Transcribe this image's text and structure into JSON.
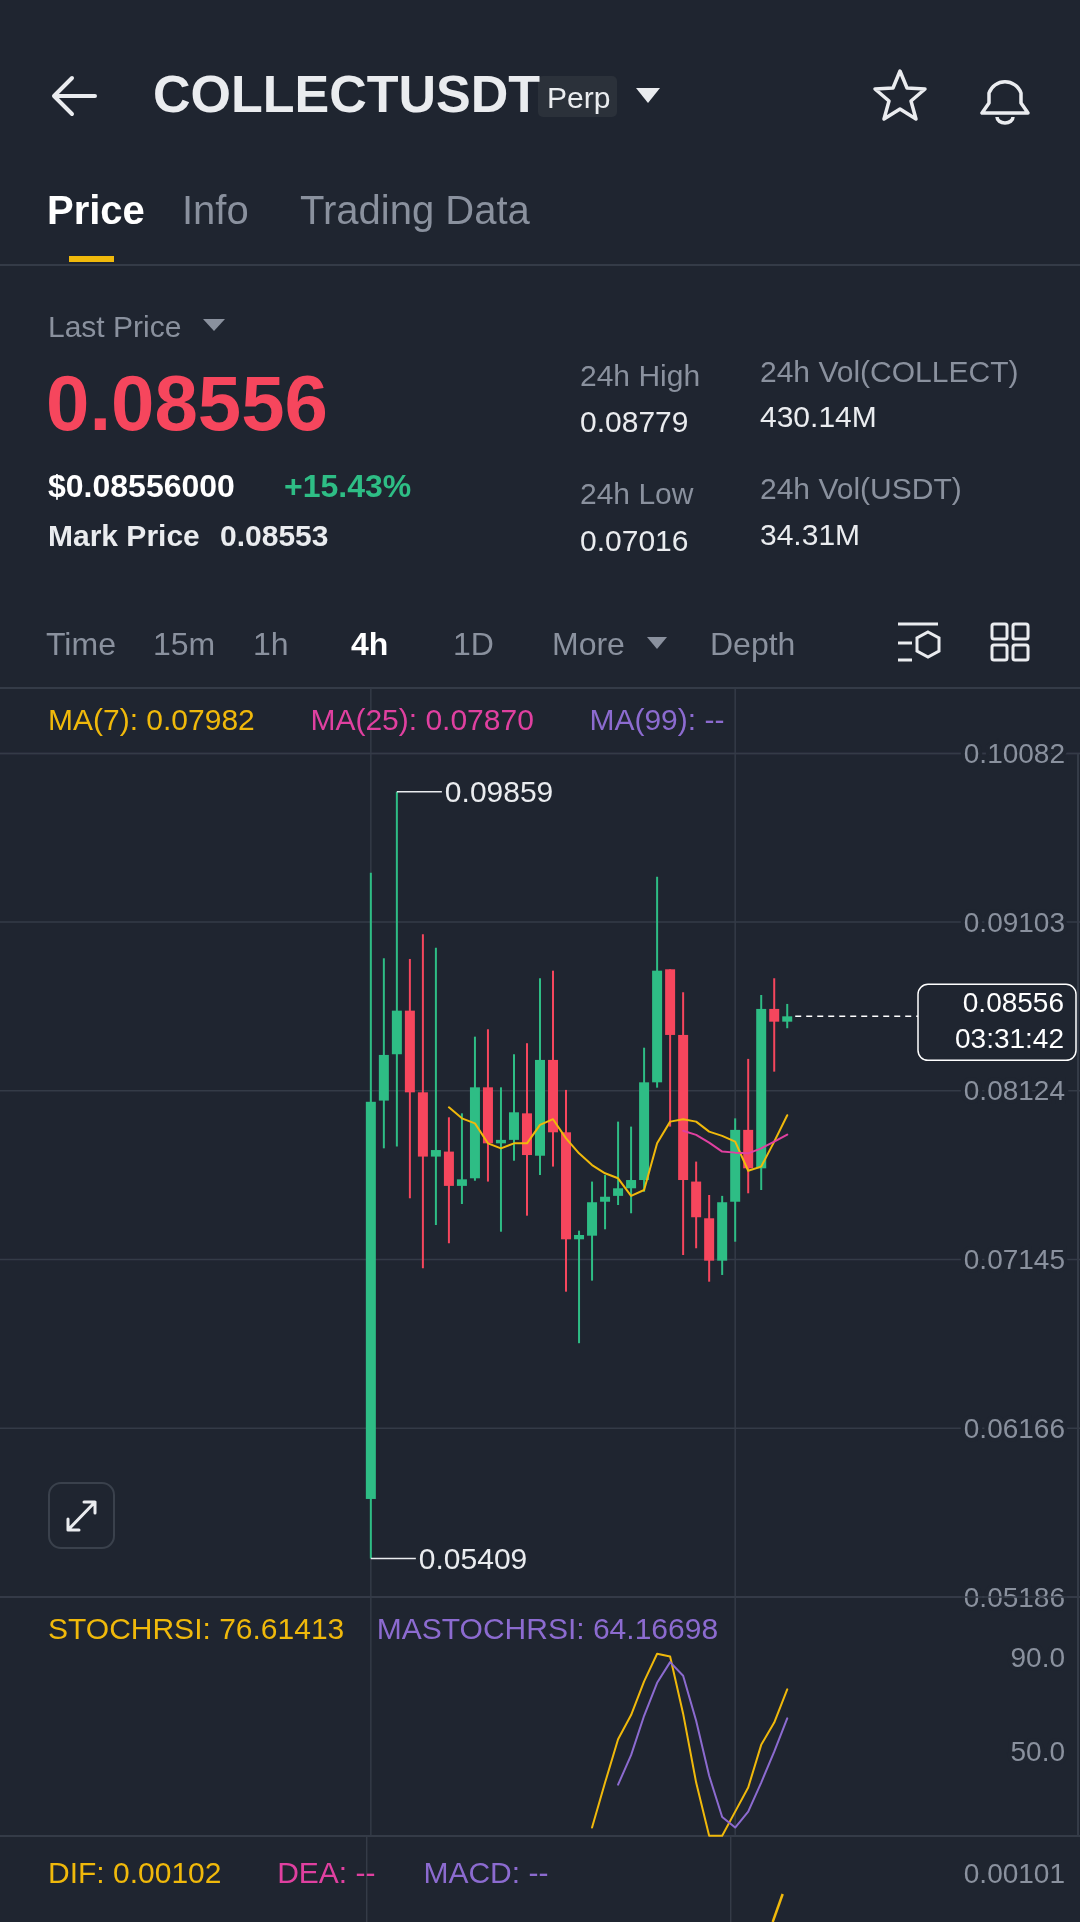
{
  "chart_data": [
    {
      "type": "candlestick",
      "title": "COLLECTUSDT",
      "annotations": [
        "Perp",
        "Price",
        "Info",
        "Trading Data",
        "Last Price",
        "0.08556",
        "$0.08556000",
        "+15.43%",
        "Mark Price",
        "0.08553",
        "24h High",
        "0.08779",
        "24h Low",
        "0.07016",
        "24h Vol(COLLECT)",
        "430.14M",
        "24h Vol(USDT)",
        "34.31M",
        "Time",
        "15m",
        "1h",
        "4h",
        "1D",
        "More",
        "Depth",
        "0.09859",
        "0.05409"
      ],
      "categories": [
        null,
        null,
        null,
        null,
        null,
        null,
        null,
        null,
        null,
        null,
        null,
        null,
        null,
        null,
        null,
        null,
        null,
        null,
        null,
        null,
        null,
        null,
        null,
        null,
        null,
        null,
        null,
        null,
        null,
        null,
        null,
        null,
        null,
        null,
        null,
        null,
        null,
        null,
        null,
        null,
        null,
        null,
        null,
        null,
        null,
        null,
        null,
        null,
        null,
        null,
        null,
        null,
        null,
        null,
        null,
        null,
        null,
        null,
        null,
        null,
        null,
        null,
        null,
        null,
        null,
        null,
        null,
        null,
        null,
        null,
        null,
        null,
        null,
        null,
        null,
        null,
        null,
        null,
        null,
        null,
        null,
        null,
        null
      ],
      "ohlc": [
        null,
        null,
        null,
        null,
        null,
        null,
        null,
        null,
        null,
        null,
        null,
        null,
        null,
        null,
        null,
        null,
        null,
        null,
        null,
        null,
        null,
        null,
        null,
        null,
        null,
        null,
        null,
        null,
        [
          0.05755,
          0.0939,
          0.05409,
          0.0806
        ],
        [
          0.08067,
          0.08893,
          0.0779,
          0.08332
        ],
        [
          0.08336,
          0.09859,
          0.078,
          0.08589
        ],
        [
          0.08589,
          0.08889,
          0.075,
          0.08115
        ],
        [
          0.08115,
          0.09032,
          0.07094,
          0.07742
        ],
        [
          0.07742,
          0.08954,
          0.07345,
          0.0778
        ],
        [
          0.07771,
          0.0797,
          0.07239,
          0.07572
        ],
        [
          0.07572,
          0.07993,
          0.07467,
          0.0761
        ],
        [
          0.07616,
          0.08438,
          0.07602,
          0.08144
        ],
        [
          0.08144,
          0.08481,
          0.07597,
          0.07819
        ],
        [
          0.07819,
          0.08144,
          0.07306,
          0.07839
        ],
        [
          0.07839,
          0.08336,
          0.07718,
          0.07999
        ],
        [
          0.07993,
          0.084,
          0.07399,
          0.07751
        ],
        [
          0.07747,
          0.08777,
          0.07635,
          0.08303
        ],
        [
          0.08303,
          0.08821,
          0.07684,
          0.07883
        ],
        [
          0.07883,
          0.08129,
          0.06958,
          0.07262
        ],
        [
          0.07262,
          0.07312,
          0.06659,
          0.07287
        ],
        [
          0.07283,
          0.07597,
          0.07022,
          0.07477
        ],
        [
          0.0748,
          0.07635,
          0.0732,
          0.07509
        ],
        [
          0.07514,
          0.07945,
          0.07461,
          0.07558
        ],
        [
          0.07558,
          0.07916,
          0.07413,
          0.07606
        ],
        [
          0.07606,
          0.08374,
          0.07538,
          0.08173
        ],
        [
          0.08173,
          0.09366,
          0.08142,
          0.08821
        ],
        [
          0.08829,
          0.08829,
          0.07916,
          0.08448
        ],
        [
          0.08448,
          0.08696,
          0.07171,
          0.07606
        ],
        [
          0.07597,
          0.07713,
          0.0721,
          0.0739
        ],
        [
          0.07384,
          0.07519,
          0.07016,
          0.07138
        ],
        [
          0.07138,
          0.07514,
          0.07055,
          0.07477
        ],
        [
          0.0748,
          0.07964,
          0.07248,
          0.07897
        ],
        [
          0.07897,
          0.08309,
          0.07529,
          0.07674
        ],
        [
          0.07674,
          0.0868,
          0.07548,
          0.08599
        ],
        [
          0.08599,
          0.08777,
          0.08235,
          0.08525
        ],
        [
          0.08525,
          0.08628,
          0.08487,
          0.08556
        ],
        null,
        null,
        null,
        null,
        null,
        null,
        null,
        null,
        null,
        null,
        null,
        null,
        null,
        null,
        null,
        null,
        null,
        null,
        null,
        null,
        null,
        null
      ],
      "colors": [
        null,
        null,
        null,
        null,
        null,
        null,
        null,
        null,
        null,
        null,
        null,
        null,
        null,
        null,
        null,
        null,
        null,
        null,
        null,
        null,
        null,
        null,
        null,
        null,
        null,
        null,
        null,
        null,
        "#2ebd85",
        "#2ebd85",
        "#2ebd85",
        "#f6465d",
        "#f6465d",
        "#2ebd85",
        "#f6465d",
        "#2ebd85",
        "#2ebd85",
        "#f6465d",
        "#2ebd85",
        "#2ebd85",
        "#f6465d",
        "#2ebd85",
        "#f6465d",
        "#f6465d",
        "#2ebd85",
        "#2ebd85",
        "#2ebd85",
        "#2ebd85",
        "#2ebd85",
        "#2ebd85",
        "#2ebd85",
        "#f6465d",
        "#f6465d",
        "#f6465d",
        "#f6465d",
        "#2ebd85",
        "#2ebd85",
        "#f6465d",
        "#2ebd85",
        "#f6465d",
        "#2ebd85",
        null,
        null,
        null,
        null,
        null,
        null,
        null,
        null,
        null,
        null,
        null,
        null,
        null,
        null,
        null,
        null,
        null,
        null,
        null,
        null,
        null,
        null
      ],
      "series": [
        {
          "name": "MA(7): 0.07982",
          "type": "line",
          "color": "#f0b90b",
          "values": [
            null,
            null,
            null,
            null,
            null,
            null,
            null,
            null,
            null,
            null,
            null,
            null,
            null,
            null,
            null,
            null,
            null,
            null,
            null,
            null,
            null,
            null,
            null,
            null,
            null,
            null,
            null,
            null,
            null,
            null,
            null,
            null,
            null,
            null,
            0.08028,
            0.07964,
            0.07935,
            0.07819,
            0.0779,
            0.07819,
            0.07819,
            0.07926,
            0.07959,
            0.07848,
            0.07761,
            0.07693,
            0.07645,
            0.07616,
            0.07514,
            0.07548,
            0.0782,
            0.07945,
            0.07959,
            0.07945,
            0.07887,
            0.07862,
            0.07829,
            0.0766,
            0.07684,
            0.07829,
            0.07982,
            null,
            null,
            null,
            null,
            null,
            null,
            null,
            null,
            null,
            null,
            null,
            null,
            null,
            null,
            null,
            null,
            null,
            null,
            null,
            null,
            null,
            null
          ]
        },
        {
          "name": "MA(25): 0.07870",
          "type": "line",
          "color": "#e040a0",
          "values": [
            null,
            null,
            null,
            null,
            null,
            null,
            null,
            null,
            null,
            null,
            null,
            null,
            null,
            null,
            null,
            null,
            null,
            null,
            null,
            null,
            null,
            null,
            null,
            null,
            null,
            null,
            null,
            null,
            null,
            null,
            null,
            null,
            null,
            null,
            null,
            null,
            null,
            null,
            null,
            null,
            null,
            null,
            null,
            null,
            null,
            null,
            null,
            null,
            null,
            null,
            null,
            null,
            0.07892,
            0.07868,
            0.07823,
            0.07771,
            0.07765,
            0.07761,
            0.0779,
            0.07829,
            0.0787,
            null,
            null,
            null,
            null,
            null,
            null,
            null,
            null,
            null,
            null,
            null,
            null,
            null,
            null,
            null,
            null,
            null,
            null,
            null,
            null,
            null,
            null
          ]
        },
        {
          "name": "MA(99): --",
          "type": "line",
          "color": "#8c6bd0",
          "values": [
            null,
            null,
            null,
            null,
            null,
            null,
            null,
            null,
            null,
            null,
            null,
            null,
            null,
            null,
            null,
            null,
            null,
            null,
            null,
            null,
            null,
            null,
            null,
            null,
            null,
            null,
            null,
            null,
            null,
            null,
            null,
            null,
            null,
            null,
            null,
            null,
            null,
            null,
            null,
            null,
            null,
            null,
            null,
            null,
            null,
            null,
            null,
            null,
            null,
            null,
            null,
            null,
            null,
            null,
            null,
            null,
            null,
            null,
            null,
            null,
            null,
            null,
            null,
            null,
            null,
            null,
            null,
            null,
            null,
            null,
            null,
            null,
            null,
            null,
            null,
            null,
            null,
            null,
            null,
            null,
            null,
            null,
            null
          ]
        }
      ],
      "ylim": [
        0.05186,
        0.10082
      ],
      "yticks": [
        0.10082,
        0.09103,
        0.08124,
        0.07145,
        0.06166,
        0.05186
      ],
      "grid": "y",
      "tick_labels": "y",
      "ref_lines": [
        {
          "axis": "y",
          "value": 0.08556,
          "label": "0.08556 03:31:42",
          "color": "#ffffff",
          "line_style": "dashed"
        }
      ]
    },
    {
      "type": "line",
      "categories": [
        null,
        null,
        null,
        null,
        null,
        null,
        null,
        null,
        null,
        null,
        null,
        null,
        null,
        null,
        null,
        null,
        null,
        null,
        null,
        null,
        null,
        null,
        null,
        null,
        null,
        null,
        null,
        null,
        null,
        null,
        null,
        null,
        null,
        null,
        null,
        null,
        null,
        null,
        null,
        null,
        null,
        null,
        null,
        null,
        null,
        null,
        null,
        null,
        null,
        null,
        null,
        null,
        null,
        null,
        null,
        null,
        null,
        null,
        null,
        null,
        null,
        null,
        null,
        null,
        null,
        null,
        null,
        null,
        null,
        null,
        null,
        null,
        null,
        null,
        null,
        null,
        null,
        null,
        null,
        null,
        null,
        null,
        null
      ],
      "series": [
        {
          "name": "STOCHRSI: 76.61413",
          "color": "#f0b90b",
          "values": [
            null,
            null,
            null,
            null,
            null,
            null,
            null,
            null,
            null,
            null,
            null,
            null,
            null,
            null,
            null,
            null,
            null,
            null,
            null,
            null,
            null,
            null,
            null,
            null,
            null,
            null,
            null,
            null,
            null,
            null,
            null,
            null,
            null,
            null,
            null,
            null,
            null,
            null,
            null,
            null,
            null,
            null,
            null,
            null,
            null,
            17.6,
            36.8,
            55.3,
            65.6,
            80,
            91.8,
            90.6,
            66.2,
            36.8,
            14.1,
            14.1,
            24.4,
            34.7,
            52.9,
            62.4,
            76.6,
            null,
            null,
            null,
            null,
            null,
            null,
            null,
            null,
            null,
            null,
            null,
            null,
            null,
            null,
            null,
            null,
            null,
            null,
            null,
            null,
            null,
            null
          ]
        },
        {
          "name": "MASTOCHRSI: 64.16698",
          "color": "#8c6bd0",
          "values": [
            null,
            null,
            null,
            null,
            null,
            null,
            null,
            null,
            null,
            null,
            null,
            null,
            null,
            null,
            null,
            null,
            null,
            null,
            null,
            null,
            null,
            null,
            null,
            null,
            null,
            null,
            null,
            null,
            null,
            null,
            null,
            null,
            null,
            null,
            null,
            null,
            null,
            null,
            null,
            null,
            null,
            null,
            null,
            null,
            null,
            null,
            null,
            35.9,
            48.5,
            65.3,
            79.4,
            88.2,
            82.4,
            63.2,
            39.7,
            22.1,
            17.6,
            24.4,
            36.8,
            50,
            64.2,
            null,
            null,
            null,
            null,
            null,
            null,
            null,
            null,
            null,
            null,
            null,
            null,
            null,
            null,
            null,
            null,
            null,
            null,
            null,
            null,
            null,
            null
          ]
        }
      ],
      "ylim": [
        14,
        116
      ],
      "yticks": [
        {
          "value": 90,
          "label": "90.0"
        },
        {
          "value": 50,
          "label": "50.0"
        }
      ],
      "tick_labels": "y"
    },
    {
      "type": "other",
      "annotations": [
        "DIF: 0.00102",
        "DEA: --",
        "MACD: --",
        "0.00101"
      ],
      "colors": [
        "#f0b90b",
        "#e040a0",
        "#8c6bd0",
        "#8a919e"
      ]
    }
  ]
}
